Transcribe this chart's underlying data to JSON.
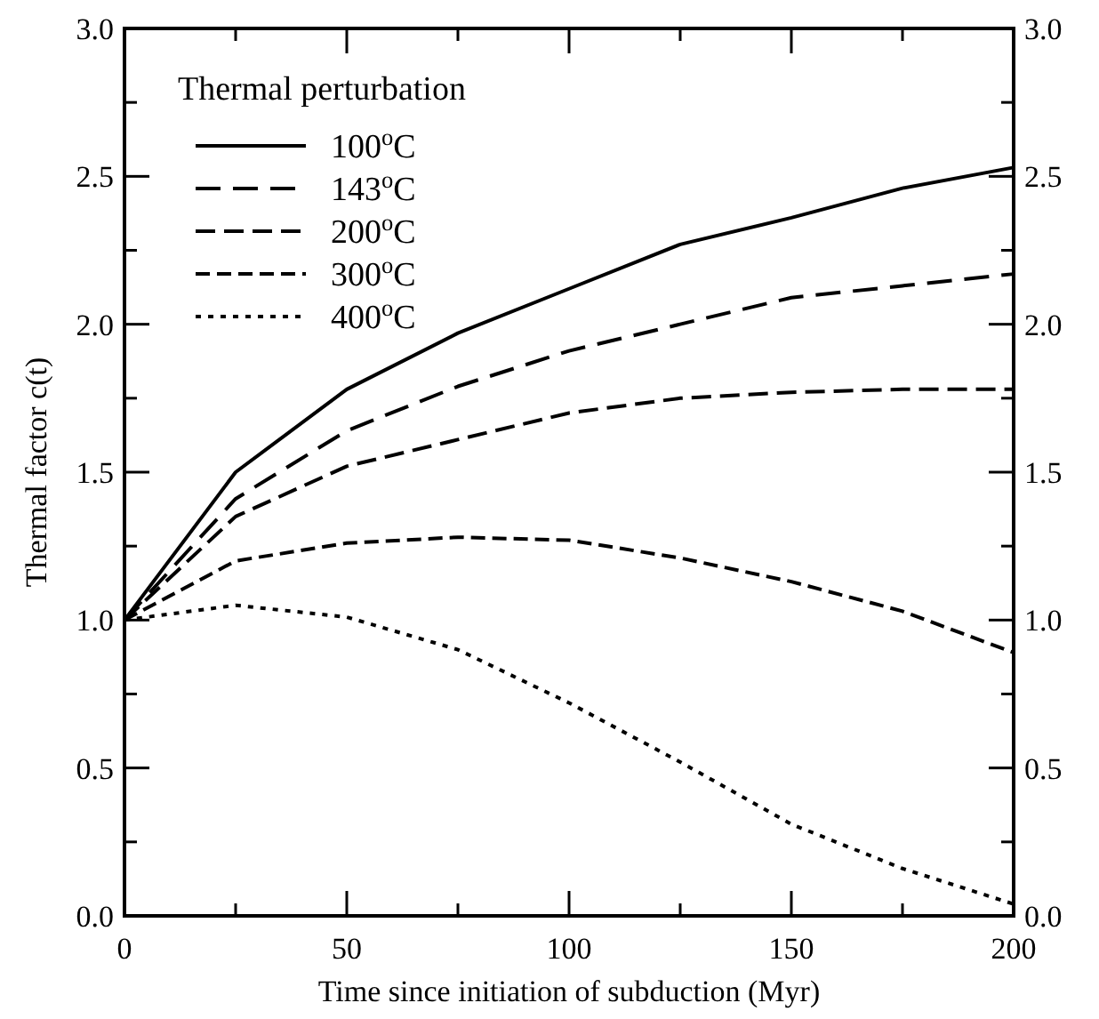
{
  "chart_data": {
    "type": "line",
    "xlabel": "Time since initiation of subduction (Myr)",
    "ylabel": "Thermal factor c(t)",
    "legend_title": "Thermal perturbation",
    "legend": "top left",
    "marker": "none",
    "x": [
      0,
      25,
      50,
      75,
      100,
      125,
      150,
      175,
      200
    ],
    "xlim": [
      0,
      200
    ],
    "xticks": [
      0,
      {
        "value": 25,
        "label": null
      },
      50,
      {
        "value": 75,
        "label": null
      },
      100,
      {
        "value": 125,
        "label": null
      },
      150,
      {
        "value": 175,
        "label": null
      },
      200
    ],
    "ylim": [
      0,
      3
    ],
    "yticks": [
      {
        "value": 0,
        "label": "0.0"
      },
      {
        "value": 0.25,
        "label": null
      },
      0.5,
      {
        "value": 0.75,
        "label": null
      },
      {
        "value": 1,
        "label": "1.0"
      },
      {
        "value": 1.25,
        "label": null
      },
      1.5,
      {
        "value": 1.75,
        "label": null
      },
      {
        "value": 2,
        "label": "2.0"
      },
      {
        "value": 2.25,
        "label": null
      },
      2.5,
      {
        "value": 2.75,
        "label": null
      },
      {
        "value": 3,
        "label": "3.0"
      }
    ],
    "y2lim": [
      0,
      3
    ],
    "y2ticks": [
      {
        "value": 0,
        "label": "0.0"
      },
      {
        "value": 0.25,
        "label": null
      },
      0.5,
      {
        "value": 0.75,
        "label": null
      },
      {
        "value": 1,
        "label": "1.0"
      },
      {
        "value": 1.25,
        "label": null
      },
      1.5,
      {
        "value": 1.75,
        "label": null
      },
      {
        "value": 2,
        "label": "2.0"
      },
      {
        "value": 2.25,
        "label": null
      },
      2.5,
      {
        "value": 2.75,
        "label": null
      },
      {
        "value": 3,
        "label": "3.0"
      }
    ],
    "series": [
      {
        "name": "100$^{o}$C",
        "color": "#000000",
        "line_style": "solid",
        "values": [
          1.0,
          1.5,
          1.78,
          1.97,
          2.12,
          2.27,
          2.36,
          2.46,
          2.53
        ]
      },
      {
        "name": "143$^{o}$C",
        "color": "#000000",
        "line_style": "dashed",
        "values": [
          1.0,
          1.41,
          1.64,
          1.79,
          1.91,
          2.0,
          2.09,
          2.13,
          2.17
        ]
      },
      {
        "name": "200$^{o}$C",
        "color": "#000000",
        "line_style": "dashed",
        "values": [
          1.0,
          1.35,
          1.52,
          1.61,
          1.7,
          1.75,
          1.77,
          1.78,
          1.78
        ]
      },
      {
        "name": "300$^{o}$C",
        "color": "#000000",
        "line_style": "dashed",
        "values": [
          1.0,
          1.2,
          1.26,
          1.28,
          1.27,
          1.21,
          1.13,
          1.03,
          0.89
        ]
      },
      {
        "name": "400$^{o}$C",
        "color": "#000000",
        "line_style": "dotted",
        "values": [
          1.0,
          1.05,
          1.01,
          0.9,
          0.72,
          0.52,
          0.31,
          0.16,
          0.04
        ]
      }
    ]
  }
}
